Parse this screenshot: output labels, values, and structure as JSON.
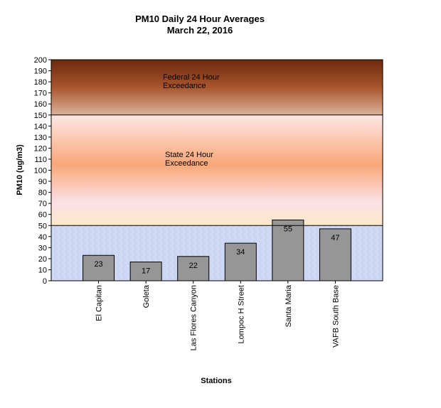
{
  "chart_data": {
    "type": "bar",
    "title": "PM10 Daily 24 Hour Averages",
    "subtitle": "March 22, 2016",
    "xlabel": "Stations",
    "ylabel": "PM10 (ug/m3)",
    "ylim": [
      0,
      200
    ],
    "ytick_step": 10,
    "grid": false,
    "categories": [
      "El Capitan",
      "Goleta",
      "Las Flores Canyon",
      "Lompoc H Street",
      "Santa Maria",
      "VAFB South Base"
    ],
    "values": [
      23,
      17,
      22,
      34,
      55,
      47
    ],
    "bar_color": "#969696",
    "thresholds": [
      {
        "value": 50,
        "label_lines": [
          "State 24 Hour",
          "Exceedance"
        ]
      },
      {
        "value": 150,
        "label_lines": [
          "Federal 24 Hour",
          "Exceedance"
        ]
      }
    ],
    "zones": {
      "background": "#c9d4f2",
      "state_color": "#f9a777",
      "federal_color": "#8a3c16"
    }
  }
}
